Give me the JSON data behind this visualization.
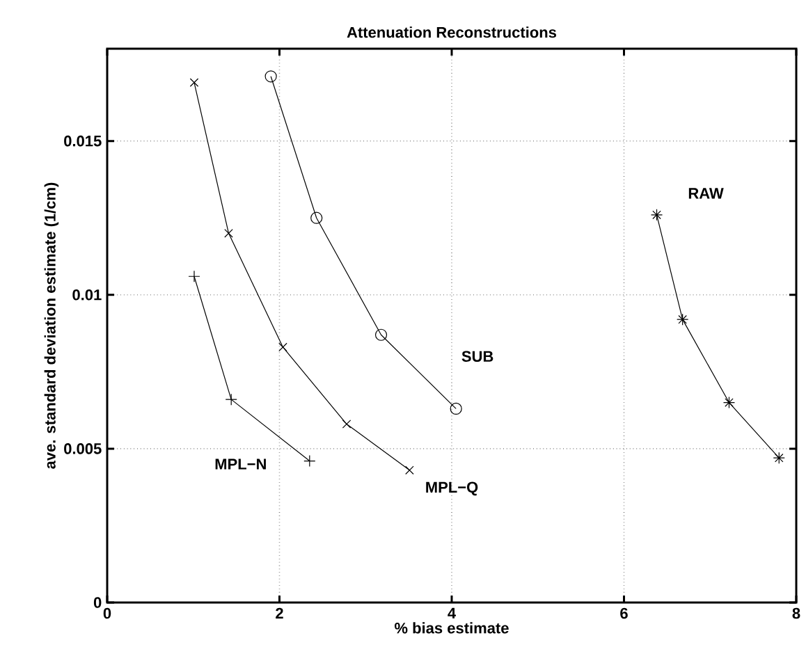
{
  "chart_data": {
    "type": "line",
    "title": "Attenuation Reconstructions",
    "xlabel": "% bias estimate",
    "ylabel": "ave. standard deviation estimate (1/cm)",
    "xlim": [
      0,
      8
    ],
    "ylim": [
      0,
      0.018
    ],
    "xticks": [
      0,
      2,
      4,
      6,
      8
    ],
    "yticks": [
      0,
      0.005,
      0.01,
      0.015
    ],
    "grid": true,
    "line_style": "solid",
    "series": [
      {
        "name": "MPL−Q",
        "color": "#000000",
        "marker": "x",
        "x": [
          1.01,
          1.41,
          2.04,
          2.78,
          3.51
        ],
        "values": [
          0.0169,
          0.012,
          0.0083,
          0.0058,
          0.0043
        ]
      },
      {
        "name": "SUB",
        "color": "#000000",
        "marker": "circle",
        "x": [
          1.9,
          2.43,
          3.18,
          4.05
        ],
        "values": [
          0.0171,
          0.0125,
          0.0087,
          0.0063
        ]
      },
      {
        "name": "MPL−N",
        "color": "#000000",
        "marker": "plus",
        "x": [
          1.01,
          1.44,
          2.35
        ],
        "values": [
          0.0106,
          0.0066,
          0.0046
        ]
      },
      {
        "name": "RAW",
        "color": "#000000",
        "marker": "cross",
        "x": [
          6.38,
          6.68,
          7.22,
          7.8
        ],
        "values": [
          0.0126,
          0.0092,
          0.0065,
          0.0047
        ]
      }
    ]
  }
}
